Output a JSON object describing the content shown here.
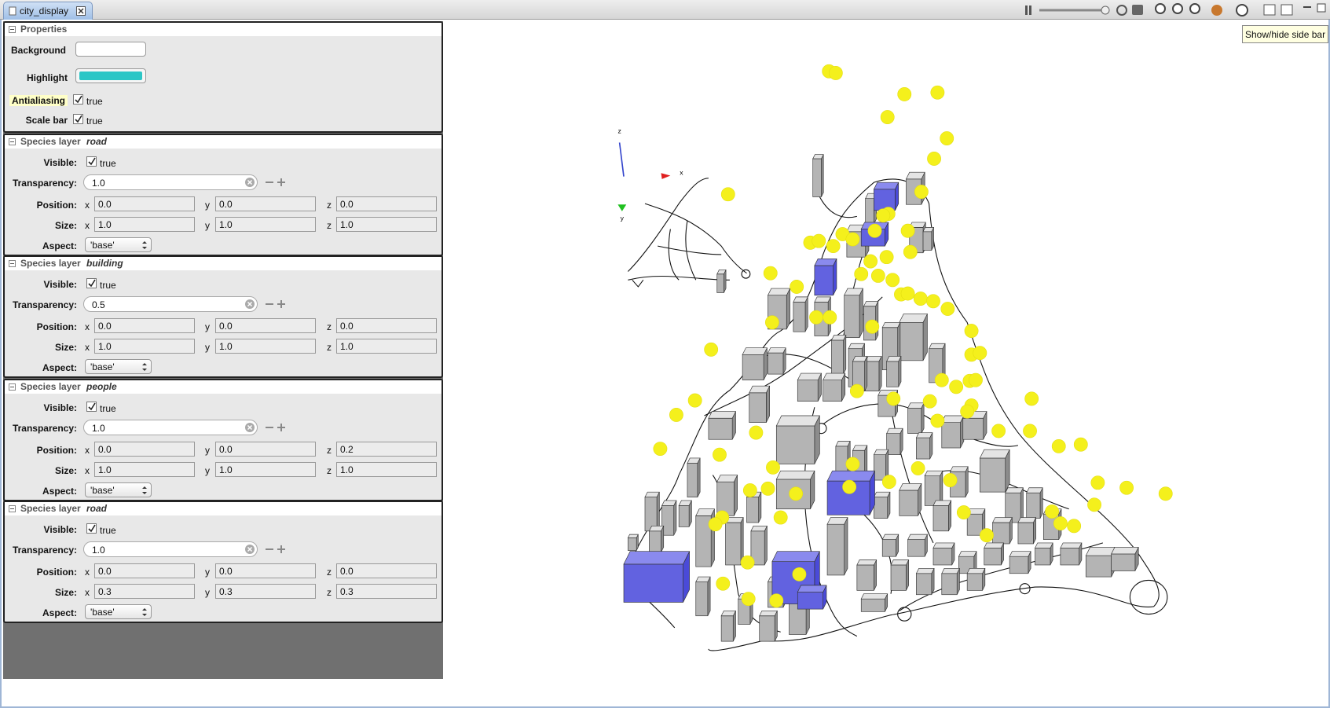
{
  "tab": {
    "title": "city_display"
  },
  "tooltip": "Show/hide side bar",
  "properties": {
    "title": "Properties",
    "background_label": "Background",
    "highlight_label": "Highlight",
    "antialiasing_label": "Antialiasing",
    "antialiasing": "true",
    "scale_bar_label": "Scale bar",
    "scale_bar": "true"
  },
  "labels": {
    "layer_heading": "Species layer",
    "visible": "Visible:",
    "transparency": "Transparency:",
    "position": "Position:",
    "size": "Size:",
    "aspect": "Aspect:",
    "x": "x",
    "y": "y",
    "z": "z"
  },
  "layers": [
    {
      "name": "road",
      "visible": "true",
      "transparency": "1.0",
      "position": {
        "x": "0.0",
        "y": "0.0",
        "z": "0.0"
      },
      "size": {
        "x": "1.0",
        "y": "1.0",
        "z": "1.0"
      },
      "aspect": "'base'"
    },
    {
      "name": "building",
      "visible": "true",
      "transparency": "0.5",
      "position": {
        "x": "0.0",
        "y": "0.0",
        "z": "0.0"
      },
      "size": {
        "x": "1.0",
        "y": "1.0",
        "z": "1.0"
      },
      "aspect": "'base'"
    },
    {
      "name": "people",
      "visible": "true",
      "transparency": "1.0",
      "position": {
        "x": "0.0",
        "y": "0.0",
        "z": "0.2"
      },
      "size": {
        "x": "1.0",
        "y": "1.0",
        "z": "1.0"
      },
      "aspect": "'base'"
    },
    {
      "name": "road",
      "visible": "true",
      "transparency": "1.0",
      "position": {
        "x": "0.0",
        "y": "0.0",
        "z": "0.0"
      },
      "size": {
        "x": "0.3",
        "y": "0.3",
        "z": "0.3"
      },
      "aspect": "'base'"
    }
  ],
  "view_axes": {
    "z": "z",
    "x": "x",
    "y": "y"
  }
}
